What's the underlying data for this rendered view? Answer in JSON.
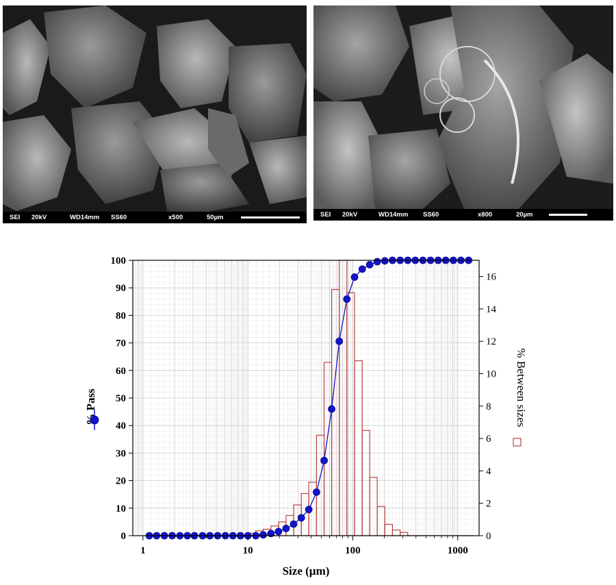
{
  "micrographs": [
    {
      "info": [
        "SEI",
        "20kV",
        "WD14mm",
        "SS60",
        "x500",
        "50µm"
      ]
    },
    {
      "info": [
        "SEI",
        "20kV",
        "WD14mm",
        "SS60",
        "x800",
        "20µm"
      ]
    }
  ],
  "chart_data": {
    "type": "bar+line",
    "xlabel": "Size (µm)",
    "ylabel_left": "% Pass",
    "ylabel_right": "% Between sizes",
    "x_scale": "log",
    "xlim": [
      0.8,
      1600
    ],
    "ylim_left": [
      0,
      100
    ],
    "ylim_right": [
      0,
      17
    ],
    "x_ticks": [
      1,
      10,
      100,
      1000
    ],
    "y_ticks_left": [
      0,
      10,
      20,
      30,
      40,
      50,
      60,
      70,
      80,
      90,
      100
    ],
    "y_ticks_right": [
      0,
      2,
      4,
      6,
      8,
      10,
      12,
      14,
      16
    ],
    "grid": true,
    "pass_series": {
      "name": "% Pass",
      "color": "#1414c8",
      "x": [
        1.15,
        1.35,
        1.6,
        1.9,
        2.25,
        2.65,
        3.1,
        3.7,
        4.35,
        5.15,
        6.1,
        7.2,
        8.5,
        10.0,
        11.9,
        14.0,
        16.6,
        19.6,
        23.1,
        27.3,
        32.3,
        38.1,
        45.1,
        53.3,
        62.9,
        74.3,
        87.8,
        104,
        123,
        145,
        171,
        202,
        239,
        283,
        334,
        394,
        466,
        551,
        651,
        769,
        909,
        1074,
        1270
      ],
      "y": [
        0,
        0,
        0,
        0,
        0,
        0,
        0,
        0,
        0,
        0,
        0,
        0,
        0,
        0,
        0,
        0.3,
        0.8,
        1.5,
        2.6,
        4.2,
        6.5,
        9.5,
        15.8,
        27.3,
        46.0,
        70.6,
        85.9,
        93.9,
        96.8,
        98.4,
        99.5,
        99.8,
        100,
        100,
        100,
        100,
        100,
        100,
        100,
        100,
        100,
        100,
        100
      ]
    },
    "histogram": {
      "name": "% Between sizes",
      "color": "#b84545",
      "edges": [
        10.0,
        11.9,
        14.0,
        16.6,
        19.6,
        23.1,
        27.3,
        32.3,
        38.1,
        45.1,
        53.3,
        62.9,
        74.3,
        87.8,
        104,
        123,
        145,
        171,
        202,
        239,
        283,
        334
      ],
      "values": [
        0.15,
        0.3,
        0.4,
        0.6,
        0.85,
        1.25,
        1.9,
        2.6,
        3.3,
        6.2,
        10.7,
        15.2,
        17.0,
        15.0,
        10.8,
        6.5,
        3.6,
        1.8,
        0.7,
        0.35,
        0.2
      ]
    }
  }
}
